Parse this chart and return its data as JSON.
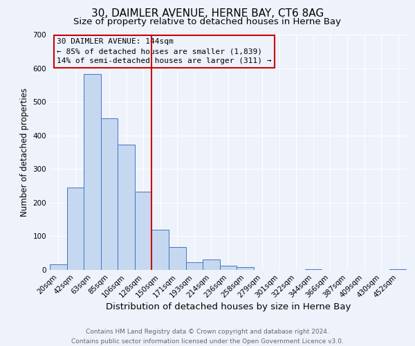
{
  "title": "30, DAIMLER AVENUE, HERNE BAY, CT6 8AG",
  "subtitle": "Size of property relative to detached houses in Herne Bay",
  "xlabel": "Distribution of detached houses by size in Herne Bay",
  "ylabel": "Number of detached properties",
  "bar_values": [
    17,
    245,
    582,
    450,
    373,
    233,
    120,
    67,
    23,
    30,
    13,
    8,
    0,
    0,
    0,
    3,
    0,
    0,
    0,
    0,
    2
  ],
  "bin_labels": [
    "20sqm",
    "42sqm",
    "63sqm",
    "85sqm",
    "106sqm",
    "128sqm",
    "150sqm",
    "171sqm",
    "193sqm",
    "214sqm",
    "236sqm",
    "258sqm",
    "279sqm",
    "301sqm",
    "322sqm",
    "344sqm",
    "366sqm",
    "387sqm",
    "409sqm",
    "430sqm",
    "452sqm"
  ],
  "bar_color": "#c5d8f0",
  "bar_edge_color": "#4472c4",
  "vline_x": 6,
  "vline_color": "#cc0000",
  "ylim": [
    0,
    700
  ],
  "yticks": [
    0,
    100,
    200,
    300,
    400,
    500,
    600,
    700
  ],
  "annotation_title": "30 DAIMLER AVENUE: 144sqm",
  "annotation_line1": "← 85% of detached houses are smaller (1,839)",
  "annotation_line2": "14% of semi-detached houses are larger (311) →",
  "annotation_box_color": "#cc0000",
  "footer_line1": "Contains HM Land Registry data © Crown copyright and database right 2024.",
  "footer_line2": "Contains public sector information licensed under the Open Government Licence v3.0.",
  "background_color": "#edf2fb",
  "grid_color": "#ffffff",
  "title_fontsize": 11,
  "subtitle_fontsize": 9.5,
  "xlabel_fontsize": 9.5,
  "ylabel_fontsize": 8.5,
  "tick_fontsize": 7.5,
  "footer_fontsize": 6.5
}
